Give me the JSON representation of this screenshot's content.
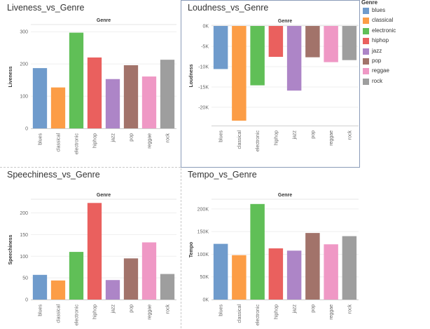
{
  "legend": {
    "title": "Genre",
    "items": [
      {
        "label": "blues",
        "color": "#6f9bcc"
      },
      {
        "label": "classical",
        "color": "#fc9d46"
      },
      {
        "label": "electronic",
        "color": "#60bf57"
      },
      {
        "label": "hiphop",
        "color": "#ea605e"
      },
      {
        "label": "jazz",
        "color": "#ad85c7"
      },
      {
        "label": "pop",
        "color": "#a2736a"
      },
      {
        "label": "reggae",
        "color": "#ef98c5"
      },
      {
        "label": "rock",
        "color": "#9e9e9e"
      }
    ]
  },
  "chart_data": [
    {
      "type": "bar",
      "title": "Liveness_vs_Genre",
      "column_header": "Genre",
      "ylabel": "Liveness",
      "categories": [
        "blues",
        "classical",
        "electronic",
        "hiphop",
        "jazz",
        "pop",
        "reggae",
        "rock"
      ],
      "values": [
        187,
        127,
        297,
        220,
        153,
        196,
        161,
        213
      ],
      "ylim": [
        0,
        320
      ],
      "yticks": [
        0,
        100,
        200,
        300
      ],
      "ytick_labels": [
        "0",
        "100",
        "200",
        "300"
      ],
      "grid": true
    },
    {
      "type": "bar",
      "title": "Loudness_vs_Genre",
      "column_header": "Genre",
      "ylabel": "Loudness",
      "categories": [
        "blues",
        "classical",
        "electronic",
        "hiphop",
        "jazz",
        "pop",
        "reggae",
        "rock"
      ],
      "values": [
        -10600,
        -23300,
        -14600,
        -7600,
        -15900,
        -7700,
        -8900,
        -8400
      ],
      "ylim": [
        -24500,
        0
      ],
      "yticks": [
        0,
        -5000,
        -10000,
        -15000,
        -20000
      ],
      "ytick_labels": [
        "0K",
        "-5K",
        "-10K",
        "-15K",
        "-20K"
      ],
      "grid": true
    },
    {
      "type": "bar",
      "title": "Speechiness_vs_Genre",
      "column_header": "Genre",
      "ylabel": "Speechiness",
      "categories": [
        "blues",
        "classical",
        "electronic",
        "hiphop",
        "jazz",
        "pop",
        "reggae",
        "rock"
      ],
      "values": [
        57,
        44,
        110,
        223,
        45,
        95,
        132,
        59
      ],
      "ylim": [
        0,
        230
      ],
      "yticks": [
        0,
        50,
        100,
        150,
        200
      ],
      "ytick_labels": [
        "0",
        "50",
        "100",
        "150",
        "200"
      ],
      "grid": true
    },
    {
      "type": "bar",
      "title": "Tempo_vs_Genre",
      "column_header": "Genre",
      "ylabel": "Tempo",
      "categories": [
        "blues",
        "classical",
        "electronic",
        "hiphop",
        "jazz",
        "pop",
        "reggae",
        "rock"
      ],
      "values": [
        123000,
        98000,
        211000,
        113000,
        108000,
        147000,
        122000,
        140000
      ],
      "ylim": [
        0,
        220000
      ],
      "yticks": [
        0,
        50000,
        100000,
        150000,
        200000
      ],
      "ytick_labels": [
        "0K",
        "50K",
        "100K",
        "150K",
        "200K"
      ],
      "grid": true
    }
  ]
}
